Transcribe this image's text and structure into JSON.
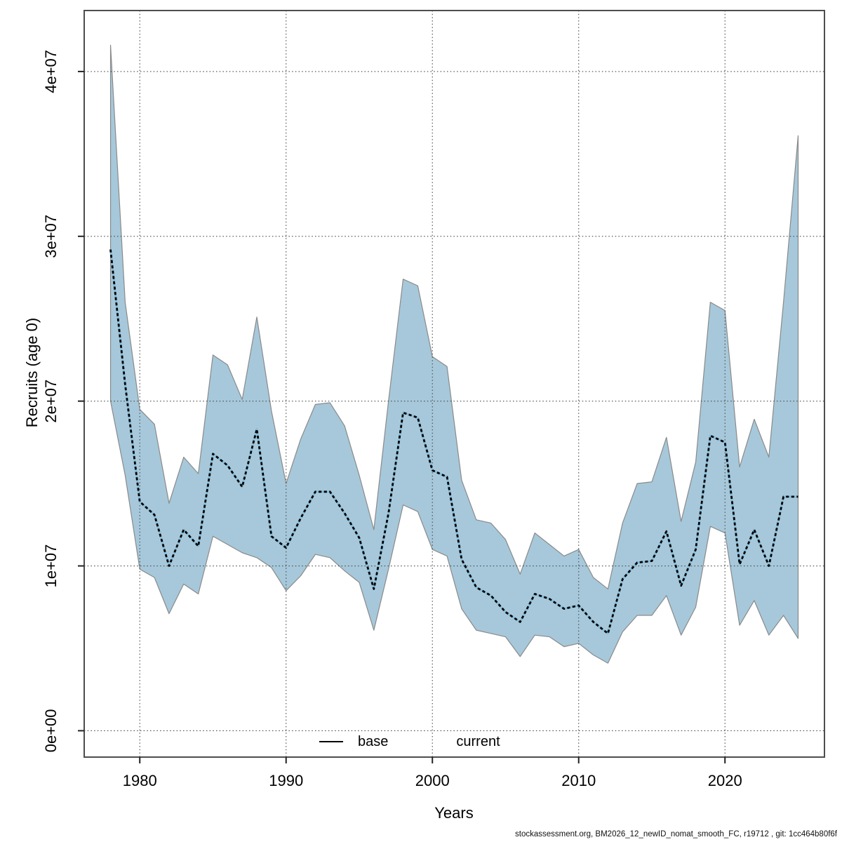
{
  "footer": {
    "text": "stockassessment.org, BM2026_12_newID_nomat_smooth_FC, r19712 , git: 1cc464b80f6f"
  },
  "legend": {
    "items": [
      {
        "label": "base",
        "line_style": "solid",
        "color": "#000000"
      },
      {
        "label": "current",
        "line_style": "dotted",
        "color": "#85bbd9"
      }
    ]
  },
  "colors": {
    "band_fill": "#a6c8da",
    "band_edge": "#8a8a8a",
    "current_line_dash": "#000000",
    "current_line_under": "#85bbd9",
    "grid": "#474747",
    "frame": "#4d4d4d",
    "tick": "#222222",
    "text": "#000000"
  },
  "chart_data": {
    "type": "line",
    "title": "",
    "xlabel": "Years",
    "ylabel": "Recruits (age 0)",
    "grid": "dotted",
    "legend_position": "bottom-center-inside",
    "xlim": [
      1976.2,
      2026.8
    ],
    "ylim": [
      -1600000,
      43700000
    ],
    "x_ticks": [
      {
        "value": 1980,
        "label": "1980"
      },
      {
        "value": 1990,
        "label": "1990"
      },
      {
        "value": 2000,
        "label": "2000"
      },
      {
        "value": 2010,
        "label": "2010"
      },
      {
        "value": 2020,
        "label": "2020"
      }
    ],
    "y_ticks": [
      {
        "value": 0,
        "label": "0e+00"
      },
      {
        "value": 10000000,
        "label": "1e+07"
      },
      {
        "value": 20000000,
        "label": "2e+07"
      },
      {
        "value": 30000000,
        "label": "3e+07"
      },
      {
        "value": 40000000,
        "label": "4e+07"
      }
    ],
    "unit": 1000000,
    "years": [
      1978,
      1979,
      1980,
      1981,
      1982,
      1983,
      1984,
      1985,
      1986,
      1987,
      1988,
      1989,
      1990,
      1991,
      1992,
      1993,
      1994,
      1995,
      1996,
      1997,
      1998,
      1999,
      2000,
      2001,
      2002,
      2003,
      2004,
      2005,
      2006,
      2007,
      2008,
      2009,
      2010,
      2011,
      2012,
      2013,
      2014,
      2015,
      2016,
      2017,
      2018,
      2019,
      2020,
      2021,
      2022,
      2023,
      2024,
      2025
    ],
    "series": [
      {
        "name": "base",
        "style": "solid",
        "color": "#000000",
        "visible": false,
        "values_millions": null
      },
      {
        "name": "current",
        "style": "dotted",
        "color": "#000000",
        "visible": true,
        "values_millions": [
          29.2,
          21,
          13.9,
          13.1,
          10,
          12.2,
          11.2,
          16.8,
          16.1,
          14.8,
          18.3,
          11.8,
          11.1,
          12.9,
          14.5,
          14.5,
          13.2,
          11.7,
          8.6,
          13.2,
          19.3,
          19,
          15.8,
          15.4,
          10.4,
          8.7,
          8.2,
          7.2,
          6.6,
          8.3,
          8,
          7.4,
          7.6,
          6.6,
          5.9,
          9.2,
          10.2,
          10.3,
          12.1,
          8.8,
          11,
          17.9,
          17.5,
          10.1,
          12.2,
          10,
          14.2,
          14.2
        ]
      }
    ],
    "band": {
      "label": "confidence-interval",
      "fill": "#a6c8da",
      "lo_millions": [
        20,
        15.5,
        9.8,
        9.3,
        7.1,
        8.9,
        8.3,
        11.8,
        11.3,
        10.8,
        10.5,
        9.9,
        8.5,
        9.4,
        10.7,
        10.5,
        9.7,
        9,
        6.1,
        9.8,
        13.7,
        13.3,
        11,
        10.6,
        7.4,
        6.1,
        5.9,
        5.7,
        4.5,
        5.8,
        5.7,
        5.1,
        5.3,
        4.6,
        4.1,
        6,
        7,
        7,
        8.2,
        5.8,
        7.5,
        12.4,
        12,
        6.4,
        7.9,
        5.8,
        7,
        5.6
      ],
      "hi_millions": [
        41.6,
        26,
        19.5,
        18.6,
        13.8,
        16.6,
        15.6,
        22.8,
        22.2,
        20.1,
        25.1,
        19.4,
        15,
        17.7,
        19.8,
        19.9,
        18.5,
        15.5,
        12.2,
        20,
        27.4,
        27,
        22.7,
        22.1,
        15.2,
        12.8,
        12.6,
        11.6,
        9.5,
        12,
        11.3,
        10.6,
        11,
        9.3,
        8.6,
        12.6,
        15,
        15.1,
        17.8,
        12.7,
        16.3,
        26,
        25.5,
        16,
        18.9,
        16.6,
        26,
        36.1
      ]
    }
  }
}
